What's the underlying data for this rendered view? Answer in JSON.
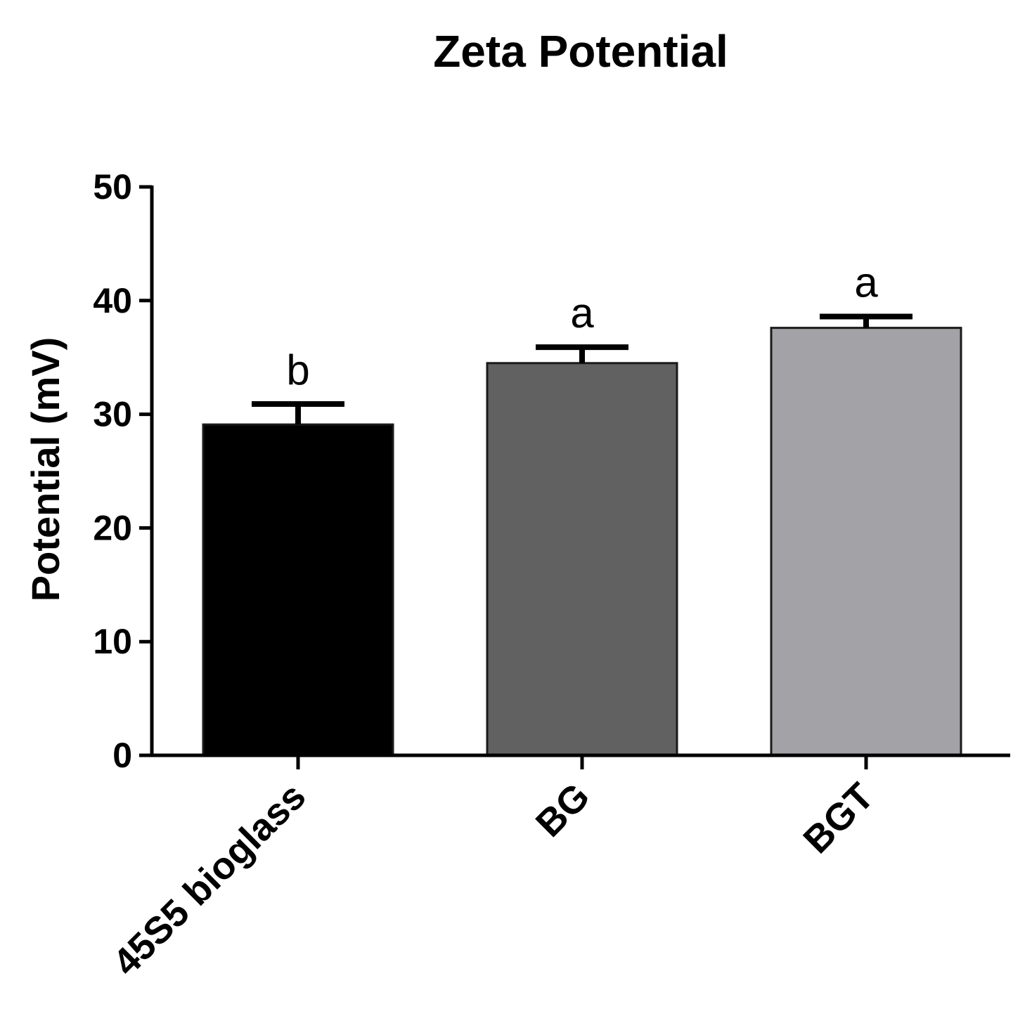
{
  "chart_data": {
    "type": "bar",
    "title": "Zeta Potential",
    "xlabel": "",
    "ylabel": "Potential (mV)",
    "ylim": [
      0,
      50
    ],
    "yticks": [
      0,
      10,
      20,
      30,
      40,
      50
    ],
    "categories": [
      "45S5 bioglass",
      "BG",
      "BGT"
    ],
    "values": [
      29.1,
      34.5,
      37.6
    ],
    "errors": [
      1.8,
      1.4,
      1.0
    ],
    "annotations": [
      "b",
      "a",
      "a"
    ],
    "colors": [
      "#000000",
      "#616161",
      "#a3a2a6"
    ],
    "grid": false,
    "legend": "none"
  }
}
